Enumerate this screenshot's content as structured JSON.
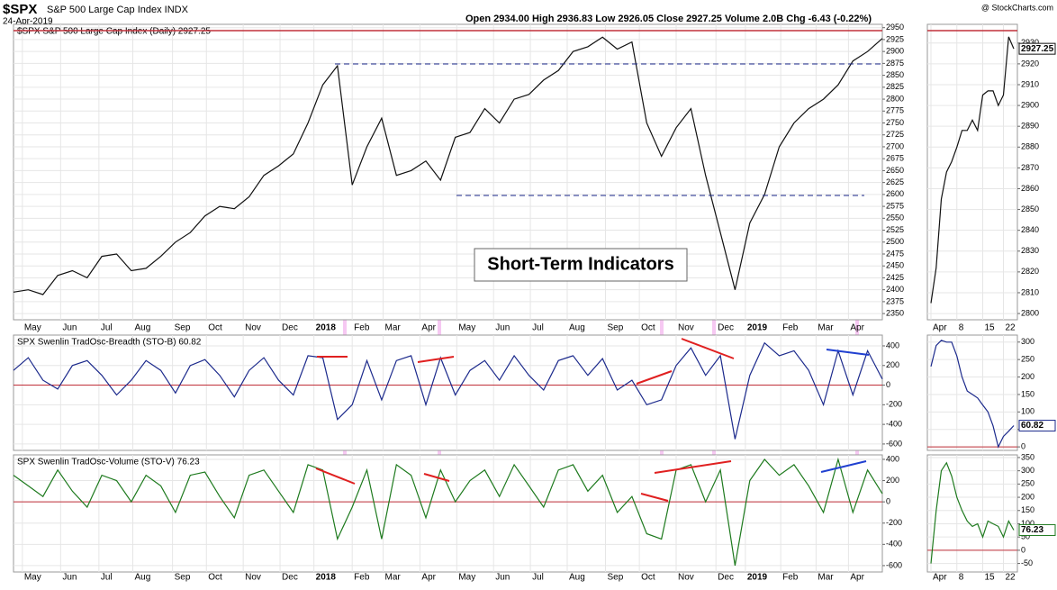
{
  "header": {
    "symbol": "$SPX",
    "name": "S&P 500 Large Cap Index INDX",
    "date": "24-Apr-2019",
    "quote": "Open 2934.00 High 2936.83 Low 2926.05 Close 2927.25 Volume 2.0B Chg -6.43 (-0.22%)",
    "watermark": "@ StockCharts.com"
  },
  "chart_data": [
    {
      "type": "line",
      "title": "$SPX S&P 500 Large Cap Index (Daily) 2927.25",
      "annotation": "Short-Term Indicators",
      "series": [
        {
          "name": "$SPX",
          "color": "#111111",
          "values": [
            2395,
            2400,
            2390,
            2430,
            2440,
            2425,
            2470,
            2475,
            2440,
            2445,
            2470,
            2500,
            2520,
            2555,
            2575,
            2570,
            2595,
            2640,
            2660,
            2685,
            2750,
            2830,
            2870,
            2620,
            2700,
            2760,
            2640,
            2650,
            2670,
            2630,
            2720,
            2730,
            2780,
            2750,
            2800,
            2810,
            2840,
            2860,
            2900,
            2910,
            2930,
            2905,
            2920,
            2750,
            2680,
            2740,
            2780,
            2640,
            2520,
            2400,
            2540,
            2600,
            2700,
            2750,
            2780,
            2800,
            2830,
            2880,
            2900,
            2927.25
          ]
        }
      ],
      "xlim": [
        0,
        59
      ],
      "ylim": [
        2337,
        2957
      ],
      "grid": true,
      "yticks": [
        2350,
        2375,
        2400,
        2425,
        2450,
        2475,
        2500,
        2525,
        2550,
        2575,
        2600,
        2625,
        2650,
        2675,
        2700,
        2725,
        2750,
        2775,
        2800,
        2825,
        2850,
        2875,
        2900,
        2925,
        2950
      ],
      "xticks": [
        {
          "value": 0.6,
          "label": "May"
        },
        {
          "value": 3.2,
          "label": "Jun"
        },
        {
          "value": 5.8,
          "label": "Jul"
        },
        {
          "value": 8.1,
          "label": "Aug"
        },
        {
          "value": 10.8,
          "label": "Sep"
        },
        {
          "value": 13.1,
          "label": "Oct"
        },
        {
          "value": 15.6,
          "label": "Nov"
        },
        {
          "value": 18.1,
          "label": "Dec"
        },
        {
          "value": 20.4,
          "label": "2018"
        },
        {
          "value": 23.0,
          "label": "Feb"
        },
        {
          "value": 25.1,
          "label": "Mar"
        },
        {
          "value": 27.6,
          "label": "Apr"
        },
        {
          "value": 30.1,
          "label": "May"
        },
        {
          "value": 32.6,
          "label": "Jun"
        },
        {
          "value": 35.1,
          "label": "Jul"
        },
        {
          "value": 37.6,
          "label": "Aug"
        },
        {
          "value": 40.2,
          "label": "Sep"
        },
        {
          "value": 42.5,
          "label": "Oct"
        },
        {
          "value": 45.0,
          "label": "Nov"
        },
        {
          "value": 47.7,
          "label": "Dec"
        },
        {
          "value": 49.7,
          "label": "2019"
        },
        {
          "value": 52.1,
          "label": "Feb"
        },
        {
          "value": 54.5,
          "label": "Mar"
        },
        {
          "value": 56.7,
          "label": "Apr"
        }
      ]
    },
    {
      "type": "line",
      "title": "SPX Swenlin TradOsc-Breadth (STO-B) 60.82",
      "series": [
        {
          "name": "STO-B",
          "color": "#1c2a8c",
          "values": [
            150,
            280,
            50,
            -40,
            200,
            250,
            100,
            -100,
            50,
            250,
            150,
            -80,
            200,
            260,
            100,
            -120,
            150,
            280,
            50,
            -100,
            300,
            280,
            -350,
            -200,
            250,
            -150,
            250,
            300,
            -200,
            280,
            -100,
            150,
            250,
            50,
            300,
            100,
            -50,
            250,
            300,
            100,
            270,
            -50,
            50,
            -200,
            -150,
            200,
            380,
            100,
            300,
            -550,
            100,
            430,
            300,
            350,
            150,
            -200,
            350,
            -100,
            350,
            60.82
          ]
        }
      ],
      "xlim": [
        0,
        59
      ],
      "ylim": [
        -665,
        510
      ],
      "grid": true,
      "yticks": [
        -600,
        -400,
        -200,
        0,
        200,
        400
      ],
      "xticks": [
        0.6,
        3.2,
        5.8,
        8.1,
        10.8,
        13.1,
        15.6,
        18.1,
        20.4,
        23.0,
        25.1,
        27.6,
        30.1,
        32.6,
        35.1,
        37.6,
        40.2,
        42.5,
        45.0,
        47.7,
        49.7,
        52.1,
        54.5,
        56.7
      ]
    },
    {
      "type": "line",
      "title": "SPX Swenlin TradOsc-Volume (STO-V) 76.23",
      "series": [
        {
          "name": "STO-V",
          "color": "#1e7a1e",
          "values": [
            250,
            150,
            50,
            300,
            100,
            -50,
            250,
            200,
            0,
            250,
            150,
            -100,
            250,
            280,
            50,
            -150,
            250,
            300,
            100,
            -100,
            350,
            300,
            -350,
            -50,
            300,
            -350,
            350,
            250,
            -150,
            300,
            0,
            200,
            300,
            50,
            350,
            150,
            -50,
            300,
            350,
            100,
            250,
            -100,
            50,
            -300,
            -350,
            300,
            350,
            0,
            300,
            -600,
            200,
            400,
            250,
            350,
            150,
            -100,
            400,
            -100,
            300,
            76.23
          ]
        }
      ],
      "xlim": [
        0,
        59
      ],
      "ylim": [
        -660,
        442
      ],
      "grid": true,
      "yticks": [
        -600,
        -400,
        -200,
        0,
        200,
        400
      ],
      "xticks": [
        {
          "value": 0.6,
          "label": "May"
        },
        {
          "value": 3.2,
          "label": "Jun"
        },
        {
          "value": 5.8,
          "label": "Jul"
        },
        {
          "value": 8.1,
          "label": "Aug"
        },
        {
          "value": 10.8,
          "label": "Sep"
        },
        {
          "value": 13.1,
          "label": "Oct"
        },
        {
          "value": 15.6,
          "label": "Nov"
        },
        {
          "value": 18.1,
          "label": "Dec"
        },
        {
          "value": 20.4,
          "label": "2018"
        },
        {
          "value": 23.0,
          "label": "Feb"
        },
        {
          "value": 25.1,
          "label": "Mar"
        },
        {
          "value": 27.6,
          "label": "Apr"
        },
        {
          "value": 30.1,
          "label": "May"
        },
        {
          "value": 32.6,
          "label": "Jun"
        },
        {
          "value": 35.1,
          "label": "Jul"
        },
        {
          "value": 37.6,
          "label": "Aug"
        },
        {
          "value": 40.2,
          "label": "Sep"
        },
        {
          "value": 42.5,
          "label": "Oct"
        },
        {
          "value": 45.0,
          "label": "Nov"
        },
        {
          "value": 47.7,
          "label": "Dec"
        },
        {
          "value": 49.7,
          "label": "2019"
        },
        {
          "value": 52.1,
          "label": "Feb"
        },
        {
          "value": 54.5,
          "label": "Mar"
        },
        {
          "value": 56.7,
          "label": "Apr"
        }
      ]
    },
    {
      "type": "line",
      "series": [
        {
          "name": "$SPX",
          "color": "#111111",
          "values": [
            2805,
            2822,
            2855,
            2868,
            2873,
            2880,
            2888,
            2888,
            2893,
            2888,
            2905,
            2907,
            2907,
            2900,
            2905,
            2933,
            2927.25
          ]
        }
      ],
      "xlim": [
        0,
        16
      ],
      "ylim": [
        2797,
        2939
      ],
      "grid": true,
      "yticks": [
        2800,
        2810,
        2820,
        2830,
        2840,
        2850,
        2860,
        2870,
        2880,
        2890,
        2900,
        2910,
        2920,
        2930
      ],
      "xticks": [
        {
          "value": 0,
          "label": "Apr"
        },
        {
          "value": 5,
          "label": "8"
        },
        {
          "value": 10,
          "label": "15"
        },
        {
          "value": 14,
          "label": "22"
        }
      ]
    },
    {
      "type": "line",
      "series": [
        {
          "name": "STO-B",
          "color": "#1c2a8c",
          "values": [
            230,
            290,
            305,
            300,
            300,
            260,
            200,
            160,
            150,
            140,
            120,
            100,
            60,
            0,
            30,
            45,
            60.82
          ]
        }
      ],
      "xlim": [
        0,
        16
      ],
      "ylim": [
        -10,
        320
      ],
      "grid": true,
      "yticks": [
        0,
        50,
        100,
        150,
        200,
        250,
        300
      ],
      "xticks": [
        0,
        5,
        10,
        14
      ]
    },
    {
      "type": "line",
      "series": [
        {
          "name": "STO-V",
          "color": "#1e7a1e",
          "values": [
            -50,
            150,
            300,
            330,
            280,
            200,
            150,
            110,
            90,
            100,
            50,
            110,
            100,
            90,
            50,
            110,
            76.23
          ]
        }
      ],
      "xlim": [
        0,
        16
      ],
      "ylim": [
        -82,
        360
      ],
      "grid": true,
      "yticks": [
        -50,
        0,
        50,
        100,
        150,
        200,
        250,
        300,
        350
      ],
      "xticks": [
        {
          "value": 0,
          "label": "Apr"
        },
        {
          "value": 5,
          "label": "8"
        },
        {
          "value": 10,
          "label": "15"
        },
        {
          "value": 14,
          "label": "22"
        }
      ]
    }
  ]
}
